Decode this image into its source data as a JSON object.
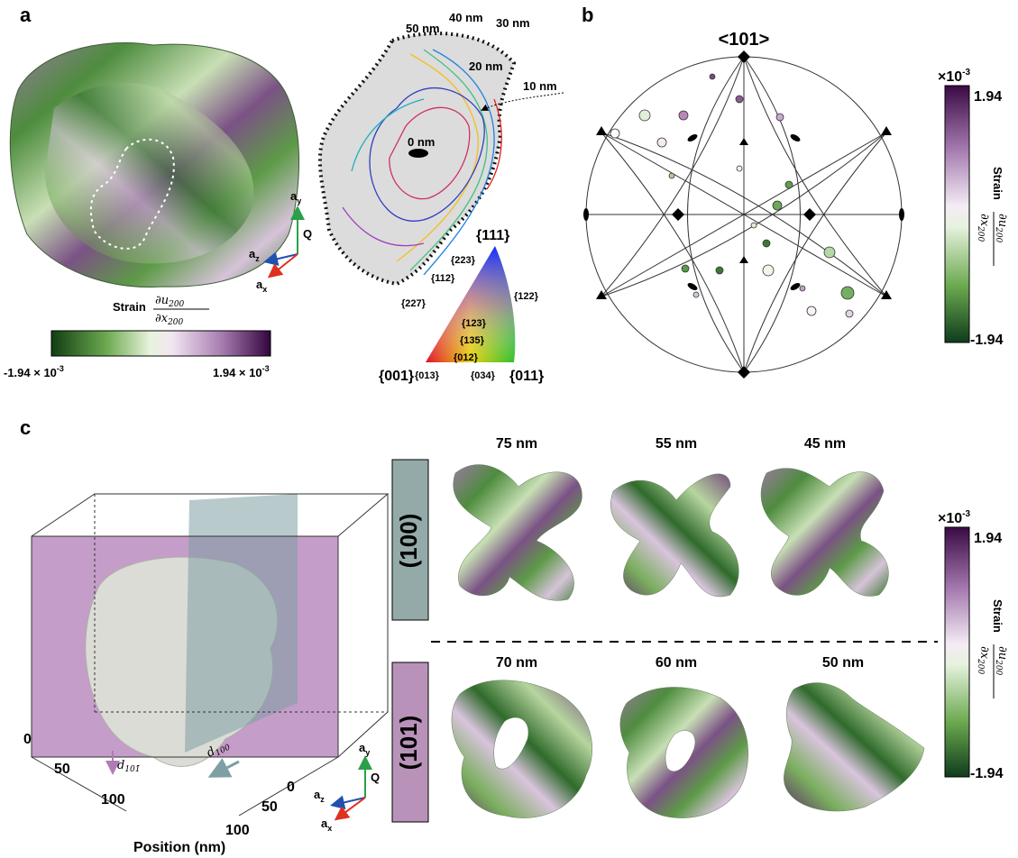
{
  "panel_a": {
    "label": "a",
    "colorbar": {
      "title": "Strain",
      "numerator": "∂u",
      "num_sub": "200",
      "denominator": "∂x",
      "den_sub": "200",
      "min": {
        "mantissa": "-1.94 × 10",
        "exponent": "-3"
      },
      "max": {
        "mantissa": "1.94 × 10",
        "exponent": "-3"
      }
    },
    "triad": {
      "y": {
        "base": "a",
        "sub": "y"
      },
      "q": "Q",
      "z": {
        "base": "a",
        "sub": "z"
      },
      "x": {
        "base": "a",
        "sub": "x"
      }
    },
    "contours": [
      "50 nm",
      "40 nm",
      "30 nm",
      "20 nm",
      "10 nm",
      "0 nm"
    ],
    "ipf": {
      "top": "{111}",
      "left": "{001}",
      "right": "{011}",
      "labels": [
        "{223}",
        "{112}",
        "{122}",
        "{227}",
        "{123}",
        "{135}",
        "{012}",
        "{013}",
        "{034}"
      ]
    }
  },
  "panel_b": {
    "label": "b",
    "pole": "<101>",
    "colorbar": {
      "scale": {
        "base": "×10",
        "exponent": "-3"
      },
      "max": "1.94",
      "min": "-1.94",
      "title": "Strain",
      "numerator": "∂u",
      "num_sub": "200",
      "denominator": "∂x",
      "den_sub": "200"
    }
  },
  "panel_c": {
    "label": "c",
    "axis": {
      "left_ticks": [
        "0",
        "50",
        "100"
      ],
      "right_ticks": [
        "0",
        "50",
        "100"
      ],
      "title": "Position (nm)",
      "d101": {
        "base": "d",
        "sub": "101̄"
      },
      "d100": {
        "base": "d",
        "sub": "100"
      }
    },
    "rows": [
      {
        "plane": "(100)",
        "depths": [
          "75 nm",
          "55 nm",
          "45 nm"
        ]
      },
      {
        "plane": "(101)",
        "depths": [
          "70 nm",
          "60 nm",
          "50 nm"
        ]
      }
    ],
    "triad": {
      "y": {
        "base": "a",
        "sub": "y"
      },
      "q": "Q",
      "z": {
        "base": "a",
        "sub": "z"
      },
      "x": {
        "base": "a",
        "sub": "x"
      }
    },
    "colorbar": {
      "scale": {
        "base": "×10",
        "exponent": "-3"
      },
      "max": "1.94",
      "min": "-1.94",
      "title": "Strain",
      "numerator": "∂u",
      "num_sub": "200",
      "denominator": "∂x",
      "den_sub": "200"
    }
  }
}
